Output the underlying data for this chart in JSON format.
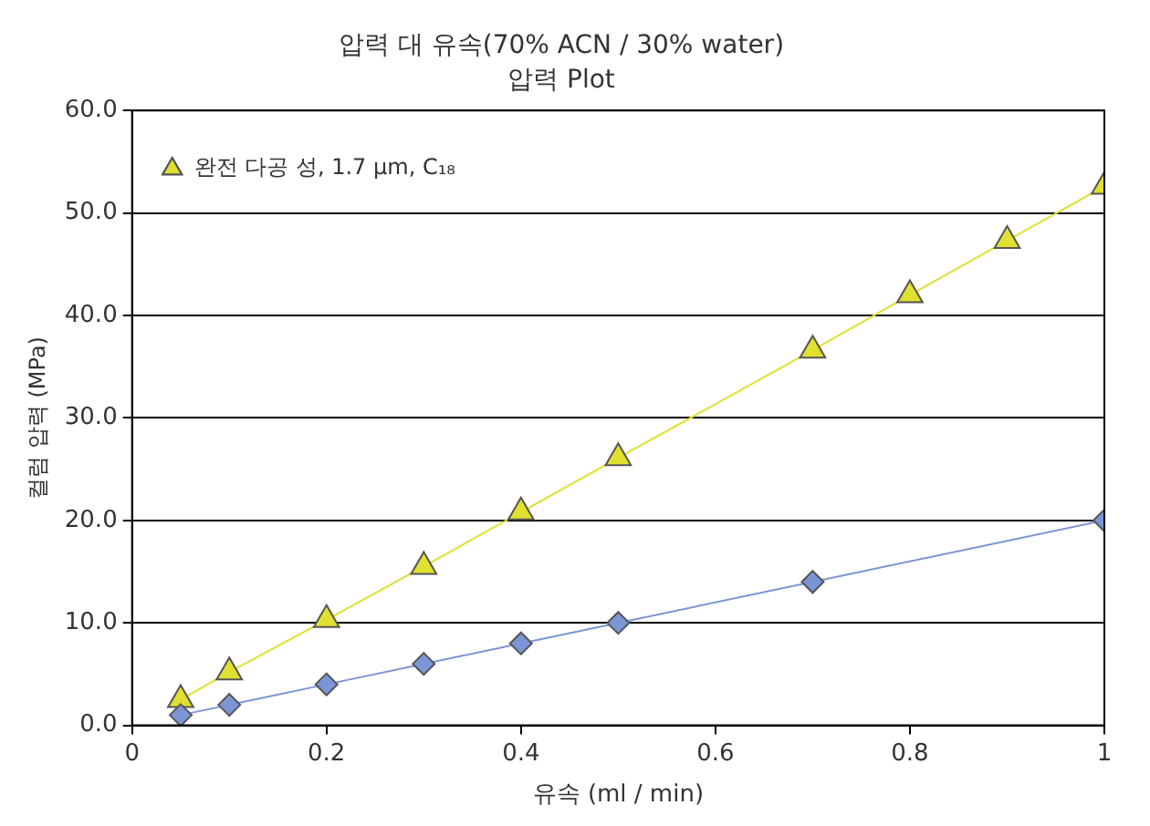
{
  "chart_data": {
    "type": "line",
    "title": "압력 대 유속(70% ACN / 30% water)",
    "subtitle": "압력 Plot",
    "xlabel": "유속 (ml / min)",
    "ylabel": "컬럼 압력 (MPa)",
    "series": [
      {
        "color": "#7b95d6",
        "marker": "diamond",
        "x": [
          0.05,
          0.1,
          0.2,
          0.3,
          0.4,
          0.5,
          0.7,
          1
        ],
        "values": [
          1.0,
          2.0,
          4.0,
          6.0,
          8.0,
          10.0,
          14.0,
          20.0
        ]
      },
      {
        "name": "완전 다공 성, 1.7 μm, C₁₈",
        "color": "#e0e030",
        "marker": "triangle",
        "x": [
          0.05,
          0.1,
          0.2,
          0.3,
          0.4,
          0.5,
          0.7,
          0.8,
          0.9,
          1
        ],
        "values": [
          2.5,
          5.2,
          10.3,
          15.5,
          20.8,
          26.1,
          36.6,
          42.0,
          47.3,
          52.6
        ]
      }
    ],
    "xlim": [
      0,
      1
    ],
    "xticks": [
      0,
      0.2,
      0.4,
      0.6,
      0.8,
      1
    ],
    "ylim": [
      0,
      60
    ],
    "yticks": [
      {
        "value": 0,
        "label": "0.0"
      },
      {
        "value": 10,
        "label": "10.0"
      },
      {
        "value": 20,
        "label": "20.0"
      },
      {
        "value": 30,
        "label": "30.0"
      },
      {
        "value": 40,
        "label": "40.0"
      },
      {
        "value": 50,
        "label": "50.0"
      },
      {
        "value": 60,
        "label": "60.0"
      }
    ],
    "grid": "y",
    "legend": "top left"
  }
}
